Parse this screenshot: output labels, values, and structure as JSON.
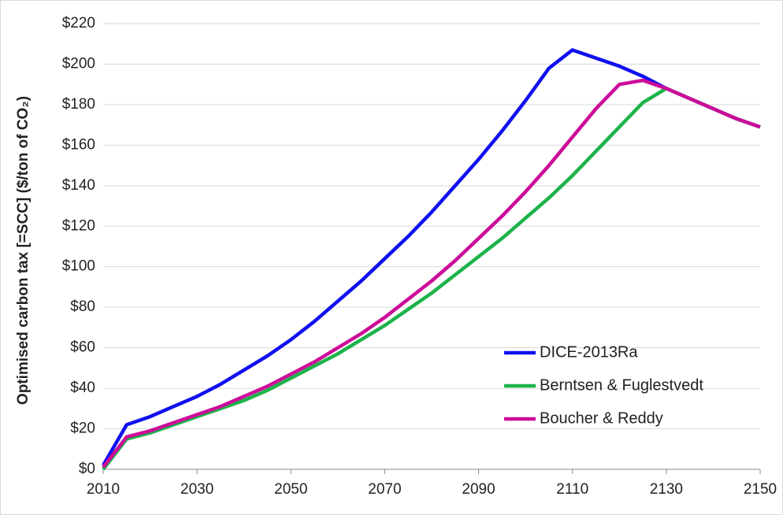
{
  "chart_data": {
    "type": "line",
    "y_label": "Optimised carbon tax [=SCC] ($/ton of CO₂)",
    "x": [
      2010,
      2015,
      2020,
      2025,
      2030,
      2035,
      2040,
      2045,
      2050,
      2055,
      2060,
      2065,
      2070,
      2075,
      2080,
      2085,
      2090,
      2095,
      2100,
      2105,
      2110,
      2115,
      2120,
      2125,
      2130,
      2135,
      2140,
      2145,
      2150
    ],
    "series": [
      {
        "name": "DICE-2013Ra",
        "color": "#1010f0",
        "values": [
          2,
          22,
          26,
          31,
          36,
          42,
          49,
          56,
          64,
          73,
          83,
          93,
          104,
          115,
          127,
          140,
          153,
          167,
          182,
          198,
          207,
          203,
          199,
          194,
          188,
          183,
          178,
          173,
          169
        ]
      },
      {
        "name": "Berntsen & Fuglestvedt",
        "color": "#1db34a",
        "values": [
          0,
          15,
          18,
          22,
          26,
          30,
          34,
          39,
          45,
          51,
          57,
          64,
          71,
          79,
          87,
          96,
          105,
          114,
          124,
          134,
          145,
          157,
          169,
          181,
          188,
          183,
          178,
          173,
          169
        ]
      },
      {
        "name": "Boucher & Reddy",
        "color": "#cc0c99",
        "values": [
          1,
          16,
          19,
          23,
          27,
          31,
          36,
          41,
          47,
          53,
          60,
          67,
          75,
          84,
          93,
          103,
          114,
          125,
          137,
          150,
          164,
          178,
          190,
          192,
          188,
          183,
          178,
          173,
          169
        ]
      }
    ],
    "xlim": [
      2010,
      2150
    ],
    "xticks": [
      2010,
      2030,
      2050,
      2070,
      2090,
      2110,
      2130,
      2150
    ],
    "ylim": [
      0,
      220
    ],
    "yticks": [
      {
        "value": 0,
        "label": "$0"
      },
      {
        "value": 20,
        "label": "$20"
      },
      {
        "value": 40,
        "label": "$40"
      },
      {
        "value": 60,
        "label": "$60"
      },
      {
        "value": 80,
        "label": "$80"
      },
      {
        "value": 100,
        "label": "$100"
      },
      {
        "value": 120,
        "label": "$120"
      },
      {
        "value": 140,
        "label": "$140"
      },
      {
        "value": 160,
        "label": "$160"
      },
      {
        "value": 180,
        "label": "$180"
      },
      {
        "value": 200,
        "label": "$200"
      },
      {
        "value": 220,
        "label": "$220"
      }
    ],
    "grid": true,
    "legend": "lower right"
  }
}
